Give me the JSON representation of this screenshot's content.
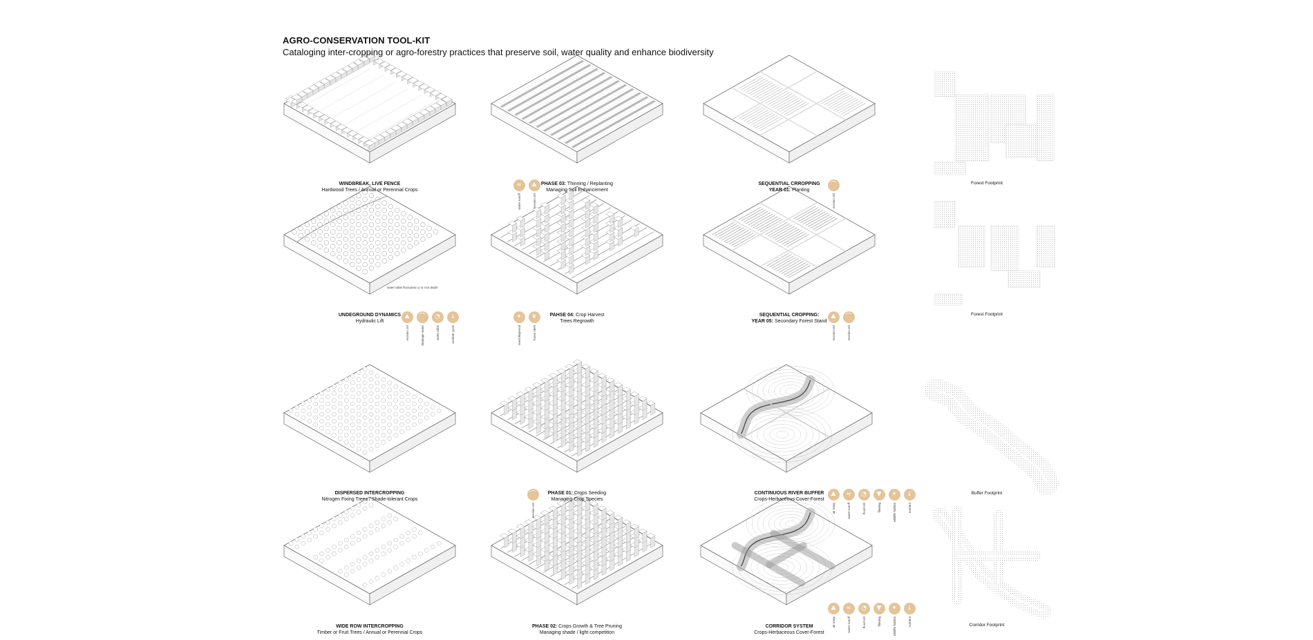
{
  "header": {
    "title": "AGRO-CONSERVATION TOOL-KIT",
    "subtitle": "Cataloging inter-cropping or agro-forestry practices that preserve soil, water quality and enhance biodiversity"
  },
  "panels": [
    {
      "id": "windbreak",
      "bold": "WINDBREAK, LIVE FENCE",
      "rest": "",
      "line2": "Hardwood Trees / Annual or Perennial Crops",
      "icons": []
    },
    {
      "id": "phase03",
      "bold": "PHASE 03:",
      "rest": " Thinning / Replanting",
      "line2": "Managing Soil Enhancement",
      "icons": [
        {
          "name": "water-icon",
          "glyph": "≈",
          "label": "water runoff"
        },
        {
          "name": "erosion-icon",
          "glyph": "⛰",
          "label": "erosion ctrl"
        }
      ]
    },
    {
      "id": "seq01",
      "bold": "SEQUENTIAL CRROPPING",
      "rest": "",
      "line2b": "YEAR 01:",
      "line2": " Planting",
      "icons": [
        {
          "name": "plant-icon",
          "glyph": "⌒",
          "label": "erosion ctrl"
        }
      ]
    },
    {
      "id": "underground",
      "bold": "UNDEGROUND DYNAMICS",
      "rest": "",
      "line2": "Hydraulic Lift",
      "icons": [
        {
          "name": "erosion-icon",
          "glyph": "⛰",
          "label": "erosion ctrl"
        },
        {
          "name": "drainage-icon",
          "glyph": "⌒",
          "label": "drainage water"
        },
        {
          "name": "water-drop-icon",
          "glyph": "◔",
          "label": "water table"
        },
        {
          "name": "nutrient-icon",
          "glyph": "↓",
          "label": "nutrient cycle"
        }
      ]
    },
    {
      "id": "phase04",
      "bold": "PAHSE 04:",
      "rest": " Crop Harvest",
      "line2": "Trees Regrowth",
      "icons": [
        {
          "name": "seed-icon",
          "glyph": "✦",
          "label": "seed dispersal"
        },
        {
          "name": "leaf-icon",
          "glyph": "❦",
          "label": "forest shelt"
        }
      ]
    },
    {
      "id": "seq05",
      "bold": "SEQUENTIAL CROPPING:",
      "rest": "",
      "line2b": "YEAR 05:",
      "line2": "  Secondary Forest Stand",
      "icons": [
        {
          "name": "erosion-icon",
          "glyph": "⛰",
          "label": "erosion ctrl"
        },
        {
          "name": "plant-icon",
          "glyph": "⌒",
          "label": "erosion ctrl"
        }
      ]
    },
    {
      "id": "dispersed",
      "bold": "DISPERSED INTERCROPPING",
      "rest": "",
      "line2": "Nitrogen Fixing Trees / Shade-tolerant Crops",
      "icons": []
    },
    {
      "id": "phase01",
      "bold": "PHASE 01:",
      "rest": " Crops Seeding",
      "line2": "Managing Crop Species",
      "icons": [
        {
          "name": "plant-icon",
          "glyph": "⌒",
          "label": "erosion ctrl"
        }
      ]
    },
    {
      "id": "river",
      "bold": "CONTINUOUS RIVER BUFFER",
      "rest": "",
      "line2": "Crops-Herbaceous Cover-Forest",
      "icons": [
        {
          "name": "erosion-icon",
          "glyph": "⛰",
          "label": "air temp"
        },
        {
          "name": "water-icon",
          "glyph": "≈",
          "label": "water runoff"
        },
        {
          "name": "water-drop-icon",
          "glyph": "◔",
          "label": "flood ctrl"
        },
        {
          "name": "funnel-icon",
          "glyph": "▼",
          "label": "filtering"
        },
        {
          "name": "seed-icon",
          "glyph": "✦",
          "label": "wildlife habitat"
        },
        {
          "name": "nutrient-icon",
          "glyph": "↓",
          "label": "nutrient"
        }
      ]
    },
    {
      "id": "widerow",
      "bold": "WIDE ROW INTERCROPPING",
      "rest": "",
      "line2": "Timber or Fruit Trees / Annual or Perennial Crops",
      "icons": []
    },
    {
      "id": "phase02",
      "bold": "PHASE 02:",
      "rest": " Crops Growth & Tree Pruning",
      "line2": "Managing shade / light competition",
      "icons": []
    },
    {
      "id": "corridor",
      "bold": "CORRIDOR SYSTEM",
      "rest": "",
      "line2": "Crops-Herbaceous Cover-Forest",
      "icons": [
        {
          "name": "erosion-icon",
          "glyph": "⛰",
          "label": "air temp"
        },
        {
          "name": "water-icon",
          "glyph": "≈",
          "label": "water runoff"
        },
        {
          "name": "water-drop-icon",
          "glyph": "◔",
          "label": "flood ctrl"
        },
        {
          "name": "funnel-icon",
          "glyph": "▼",
          "label": "filtering"
        },
        {
          "name": "seed-icon",
          "glyph": "✦",
          "label": "wildlife habitat"
        },
        {
          "name": "nutrient-icon",
          "glyph": "↓",
          "label": "nutrient"
        }
      ]
    }
  ],
  "footprints": [
    "Forest Footprint",
    "Forest Footprint",
    "Buffer Footprint",
    "Corridor Footprint"
  ],
  "annotation": "water table fluctuation y to root depth",
  "colors": {
    "icon_fill": "#e4c498",
    "line": "#6a6a6a",
    "shade": "#8a8a8a"
  }
}
